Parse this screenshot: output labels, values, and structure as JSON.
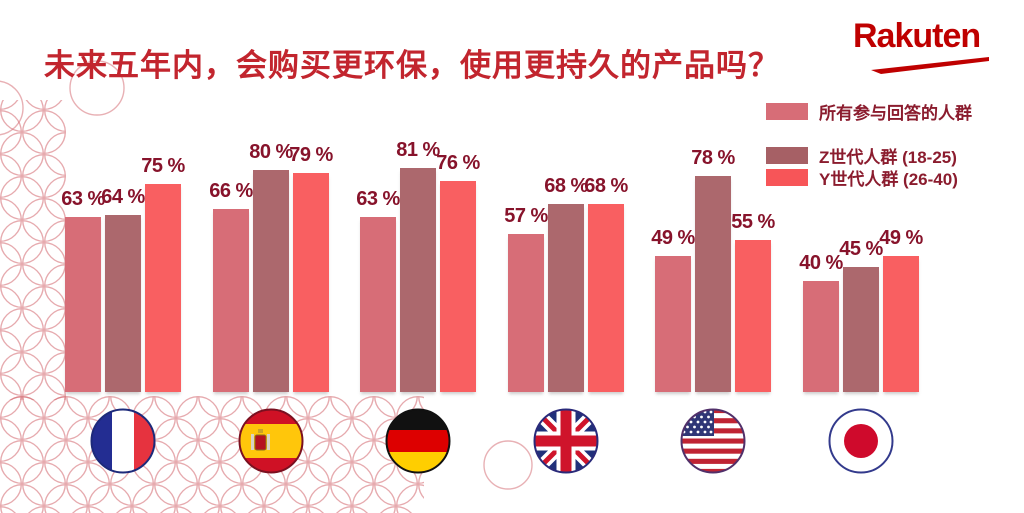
{
  "brand": {
    "logo_text": "Rakuten",
    "color": "#bf0000"
  },
  "title": {
    "text": "未来五年内，会购买更环保，使用更持久的产品吗？",
    "color": "#c2252e"
  },
  "legend": {
    "items": [
      {
        "label": "所有参与回答的人群",
        "color": "#d76d77"
      },
      {
        "label": "Z世代人群 (18-25)",
        "color": "#a66065"
      },
      {
        "label": "Y世代人群 (26-40)",
        "color": "#f75558"
      }
    ]
  },
  "chart_data": {
    "type": "bar",
    "title": "未来五年内，会购买更环保，使用更持久的产品吗？",
    "categories": [
      "France",
      "Spain",
      "Germany",
      "United Kingdom",
      "USA",
      "Japan"
    ],
    "category_icons": [
      "flag-france-icon",
      "flag-spain-icon",
      "flag-germany-icon",
      "flag-uk-icon",
      "flag-usa-icon",
      "flag-japan-icon"
    ],
    "series": [
      {
        "name": "所有参与回答的人群",
        "color": "#d76d77",
        "values": [
          63,
          66,
          63,
          57,
          49,
          40
        ]
      },
      {
        "name": "Z世代人群 (18-25)",
        "color": "#ac686d",
        "values": [
          64,
          80,
          81,
          68,
          78,
          45
        ]
      },
      {
        "name": "Y世代人群 (26-40)",
        "color": "#f95f61",
        "values": [
          75,
          79,
          76,
          68,
          55,
          49
        ]
      }
    ],
    "value_suffix": " %",
    "ylim": [
      0,
      100
    ],
    "grid": false,
    "axes_visible": false,
    "legend_position": "top-right",
    "data_labels": true
  }
}
